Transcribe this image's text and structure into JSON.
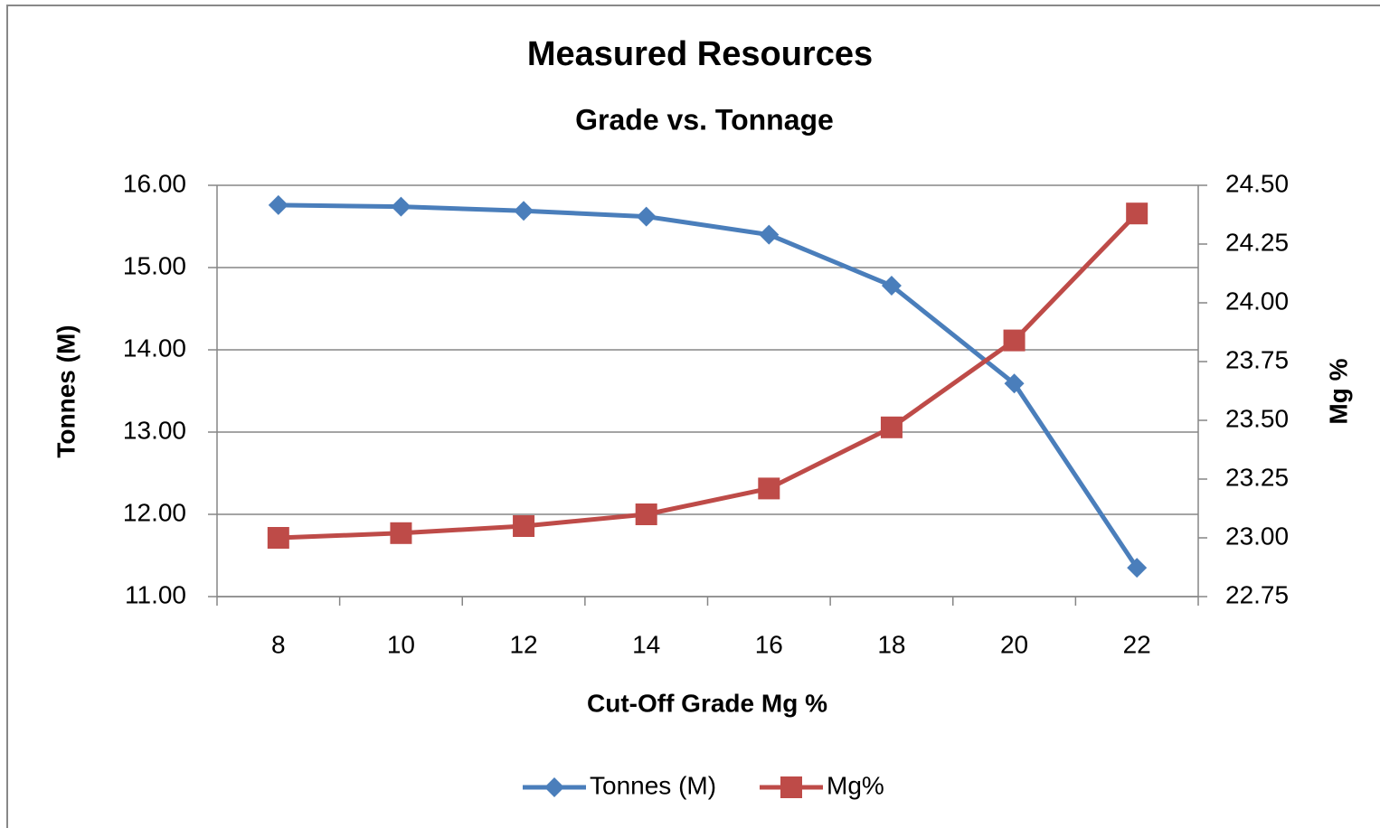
{
  "chart_data": {
    "type": "line",
    "title": "Measured Resources",
    "subtitle": "Grade vs. Tonnage",
    "x_label": "Cut-Off Grade Mg %",
    "y_label": "Tonnes (M)",
    "y2_label": "Mg %",
    "categories": [
      "8",
      "10",
      "12",
      "14",
      "16",
      "18",
      "20",
      "22"
    ],
    "series": [
      {
        "name": "Tonnes (M)",
        "color": "#4a7ebb",
        "marker": "diamond",
        "values": [
          15.76,
          15.74,
          15.69,
          15.62,
          15.4,
          14.78,
          13.59,
          11.35
        ]
      },
      {
        "name": "Mg%",
        "color": "#be4b48",
        "marker": "square",
        "axis": "y2",
        "values": [
          23.0,
          23.02,
          23.05,
          23.1,
          23.21,
          23.47,
          23.84,
          24.38
        ]
      }
    ],
    "ylim": [
      11,
      16
    ],
    "yticks": [
      {
        "value": 11,
        "label": "11.00"
      },
      {
        "value": 12,
        "label": "12.00"
      },
      {
        "value": 13,
        "label": "13.00"
      },
      {
        "value": 14,
        "label": "14.00"
      },
      {
        "value": 15,
        "label": "15.00"
      },
      {
        "value": 16,
        "label": "16.00"
      }
    ],
    "y2lim": [
      22.75,
      24.5
    ],
    "y2ticks": [
      22.75,
      {
        "value": 23,
        "label": "23.00"
      },
      23.25,
      {
        "value": 23.5,
        "label": "23.50"
      },
      23.75,
      {
        "value": 24,
        "label": "24.00"
      },
      24.25,
      {
        "value": 24.5,
        "label": "24.50"
      }
    ],
    "grid": true,
    "legend": "bottom"
  }
}
